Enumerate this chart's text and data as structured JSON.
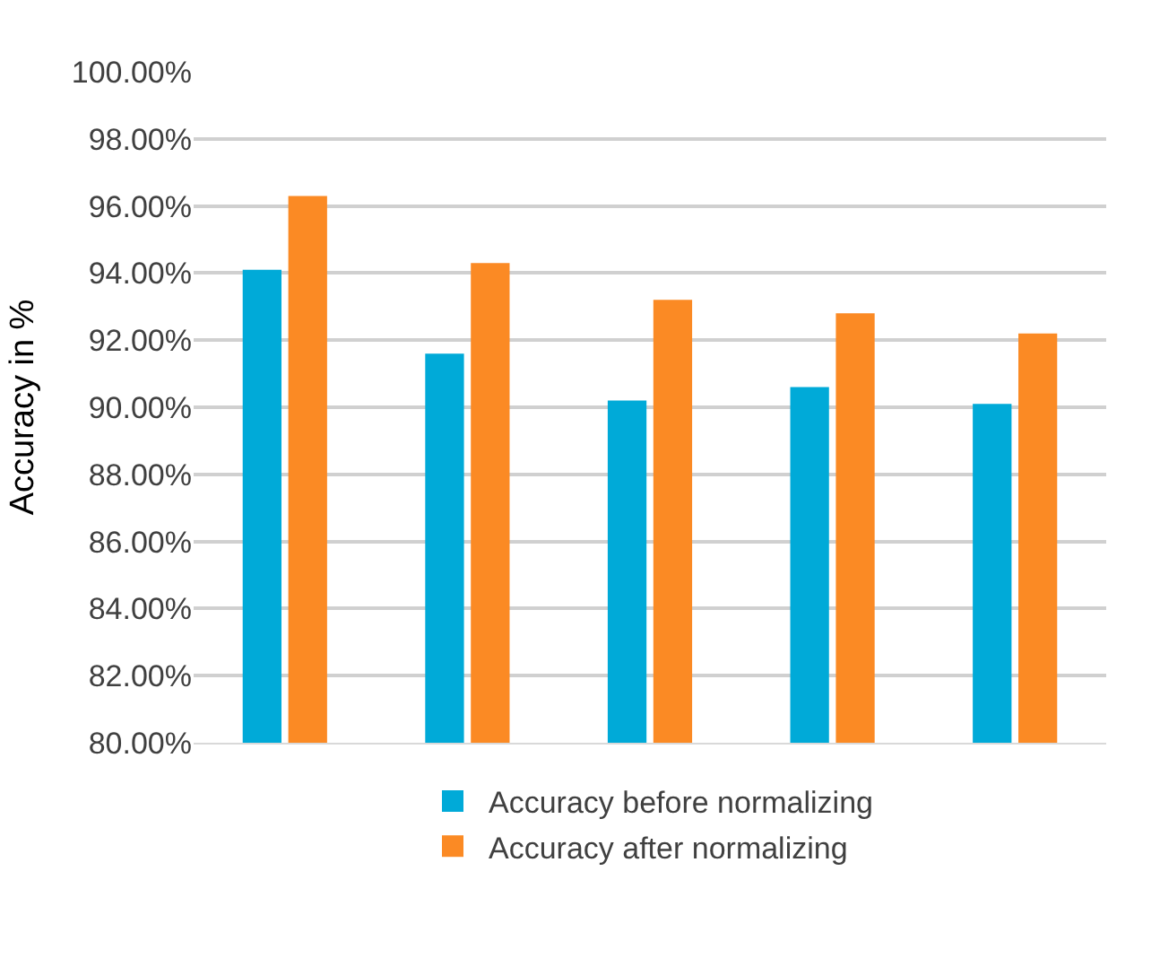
{
  "chart_data": {
    "type": "bar",
    "ylabel": "Accuracy in %",
    "categories": [
      null,
      null,
      null,
      null,
      null
    ],
    "series": [
      {
        "name": "Accuracy before normalizing",
        "color": "#00aad8",
        "values": [
          94.1,
          91.6,
          90.2,
          90.6,
          90.1
        ]
      },
      {
        "name": "Accuracy after normalizing",
        "color": "#fb8a24",
        "values": [
          96.3,
          94.3,
          93.2,
          92.8,
          92.2
        ]
      }
    ],
    "ylim": [
      80,
      100
    ],
    "yticks": [
      {
        "value": 80,
        "label": "80.00%"
      },
      {
        "value": 82,
        "label": "82.00%"
      },
      {
        "value": 84,
        "label": "84.00%"
      },
      {
        "value": 86,
        "label": "86.00%"
      },
      {
        "value": 88,
        "label": "88.00%"
      },
      {
        "value": 90,
        "label": "90.00%"
      },
      {
        "value": 92,
        "label": "92.00%"
      },
      {
        "value": 94,
        "label": "94.00%"
      },
      {
        "value": 96,
        "label": "96.00%"
      },
      {
        "value": 98,
        "label": "98.00%"
      },
      {
        "value": 100,
        "label": "100.00%"
      }
    ],
    "grid": "y",
    "legend": "bottom"
  }
}
